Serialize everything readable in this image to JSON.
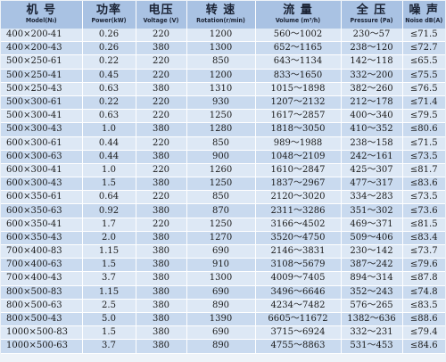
{
  "headers": [
    {
      "zh": "机 号",
      "en": "Model(№)"
    },
    {
      "zh": "功率",
      "en": "Power(kW)"
    },
    {
      "zh": "电压",
      "en": "Voltage (V)"
    },
    {
      "zh": "转 速",
      "en": "Rotation(r/min)"
    },
    {
      "zh": "流 量",
      "en": "Volume (m³/h)"
    },
    {
      "zh": "全 压",
      "en": "Pressure (Pa)"
    },
    {
      "zh": "噪 声",
      "en": "Noise dB(A)"
    }
  ],
  "rows": [
    [
      "400×200-41",
      "0.26",
      "220",
      "1200",
      "560～1002",
      "230～57",
      "≤71.5"
    ],
    [
      "400×200-43",
      "0.26",
      "380",
      "1300",
      "652～1165",
      "238～120",
      "≤72.7"
    ],
    [
      "500×250-61",
      "0.22",
      "220",
      "850",
      "643～1134",
      "142～118",
      "≤65.5"
    ],
    [
      "500×250-41",
      "0.45",
      "220",
      "1200",
      "833～1650",
      "332～200",
      "≤75.5"
    ],
    [
      "500×250-43",
      "0.63",
      "380",
      "1310",
      "1015～1898",
      "382～260",
      "≤76.5"
    ],
    [
      "500×300-61",
      "0.22",
      "220",
      "930",
      "1207～2132",
      "212～178",
      "≤71.4"
    ],
    [
      "500×300-41",
      "0.63",
      "220",
      "1250",
      "1617～2857",
      "400～340",
      "≤79.5"
    ],
    [
      "500×300-43",
      "1.0",
      "380",
      "1280",
      "1818～3050",
      "410～352",
      "≤80.6"
    ],
    [
      "600×300-61",
      "0.44",
      "220",
      "850",
      "989～1988",
      "238～158",
      "≤71.5"
    ],
    [
      "600×300-63",
      "0.44",
      "380",
      "900",
      "1048～2109",
      "242～161",
      "≤73.5"
    ],
    [
      "600×300-41",
      "1.0",
      "220",
      "1260",
      "1610～2847",
      "425～307",
      "≤81.7"
    ],
    [
      "600×300-43",
      "1.5",
      "380",
      "1250",
      "1837～2967",
      "477～317",
      "≤83.6"
    ],
    [
      "600×350-61",
      "0.64",
      "220",
      "850",
      "2120～3020",
      "334～283",
      "≤73.5"
    ],
    [
      "600×350-63",
      "0.92",
      "380",
      "870",
      "2311～3286",
      "351～302",
      "≤73.6"
    ],
    [
      "600×350-41",
      "1.7",
      "220",
      "1250",
      "3166～4502",
      "469～371",
      "≤81.5"
    ],
    [
      "600×350-43",
      "2.0",
      "380",
      "1270",
      "3520～4750",
      "509～406",
      "≤83.4"
    ],
    [
      "700×400-83",
      "1.15",
      "380",
      "690",
      "2146～3831",
      "230～142",
      "≤73.7"
    ],
    [
      "700×400-63",
      "1.5",
      "380",
      "910",
      "3108～5679",
      "387～242",
      "≤79.6"
    ],
    [
      "700×400-43",
      "3.7",
      "380",
      "1300",
      "4009～7405",
      "894～314",
      "≤87.8"
    ],
    [
      "800×500-83",
      "1.15",
      "380",
      "690",
      "3496～6646",
      "352～243",
      "≤74.8"
    ],
    [
      "800×500-63",
      "2.5",
      "380",
      "890",
      "4234～7482",
      "576～265",
      "≤83.5"
    ],
    [
      "800×500-43",
      "5.0",
      "380",
      "1390",
      "6605～11672",
      "1382～636",
      "≤88.6"
    ],
    [
      "1000×500-83",
      "1.5",
      "380",
      "690",
      "3715～6924",
      "332～231",
      "≤79.4"
    ],
    [
      "1000×500-63",
      "3.7",
      "380",
      "890",
      "4755～8863",
      "531～453",
      "≤84.6"
    ]
  ]
}
